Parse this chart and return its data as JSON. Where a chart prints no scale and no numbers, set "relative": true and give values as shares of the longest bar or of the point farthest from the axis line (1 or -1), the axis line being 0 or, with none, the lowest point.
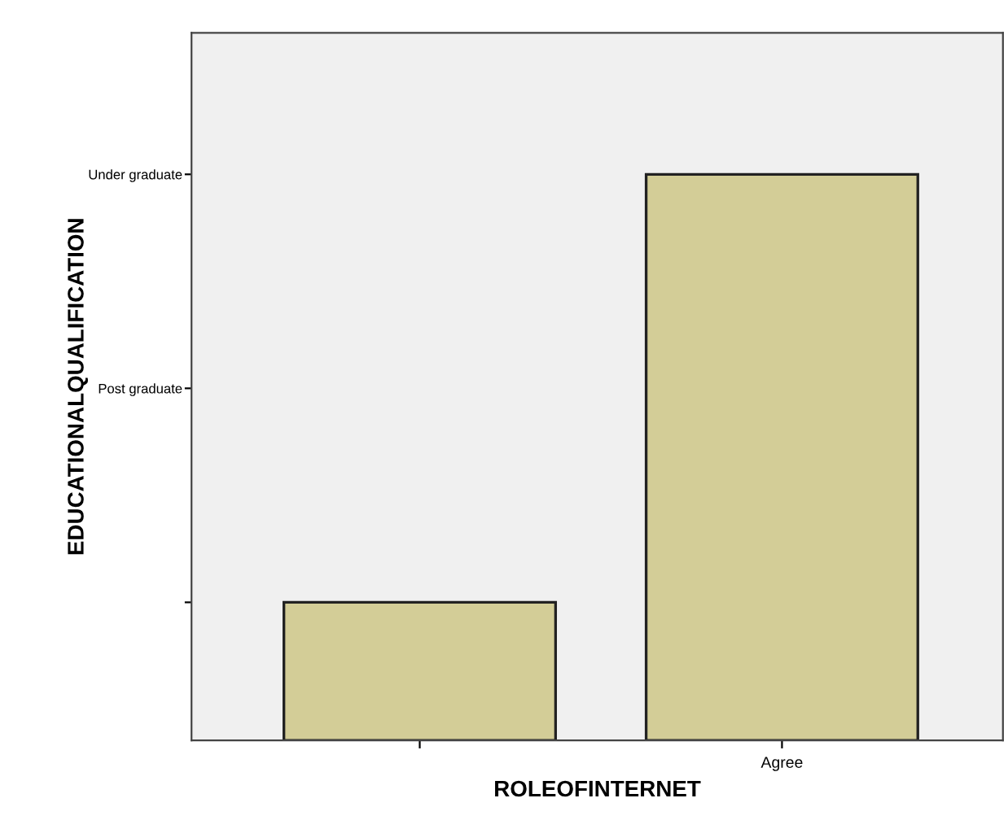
{
  "chart_data": {
    "type": "bar",
    "xlabel": "ROLEOFINTERNET",
    "ylabel": "EDUCATIONALQUALIFICATION",
    "categories": [
      null,
      "Agree"
    ],
    "relative": true,
    "values": [
      0.244,
      1
    ],
    "color": "#d3cd97",
    "annotations": [
      "Post graduate",
      "Under graduate"
    ],
    "grid": false,
    "legend": false
  }
}
